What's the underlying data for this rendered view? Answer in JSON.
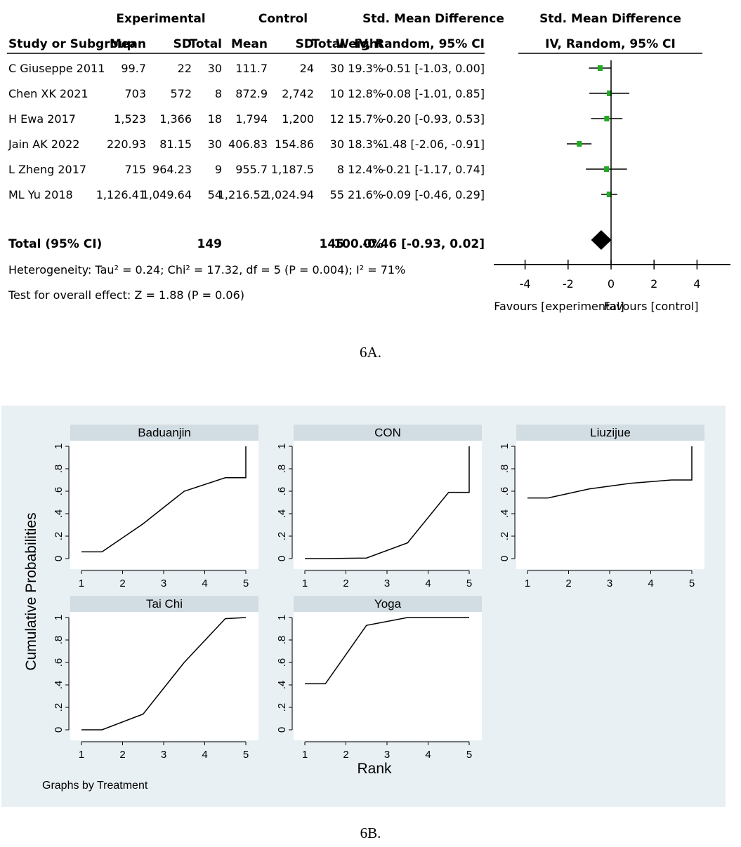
{
  "figure_a": {
    "caption": "6A.",
    "header": {
      "group_experimental": "Experimental",
      "group_control": "Control",
      "smd_col": "Std. Mean Difference",
      "smd_col_sub": "IV, Random, 95% CI",
      "plot_title": "Std. Mean Difference",
      "plot_title_sub": "IV, Random, 95% CI",
      "study": "Study or Subgroup",
      "mean": "Mean",
      "sd": "SD",
      "total": "Total",
      "weight": "Weight"
    },
    "total_row": {
      "label": "Total (95% CI)",
      "exp_total": "149",
      "ctrl_total": "145",
      "weight": "100.0%",
      "ci": "-0.46 [-0.93, 0.02]",
      "est": -0.46,
      "lo": -0.93,
      "hi": 0.02
    },
    "heterogeneity": "Heterogeneity: Tau² = 0.24; Chi² = 17.32, df = 5 (P = 0.004); I² = 71%",
    "overall_effect": "Test for overall effect: Z = 1.88 (P = 0.06)",
    "favours_left": "Favours [experimental]",
    "favours_right": "Favours [control]",
    "marker_color": "#22aa22"
  },
  "figure_b": {
    "caption": "6B.",
    "ylabel": "Cumulative Probabilities",
    "xlabel": "Rank",
    "note": "Graphs by Treatment",
    "background": "#e9f0f3",
    "strip_color": "#d2dde3"
  },
  "chart_data": [
    {
      "type": "forest",
      "title": "Std. Mean Difference IV, Random, 95% CI",
      "xlim": [
        -6,
        6
      ],
      "xticks": [
        -4,
        -2,
        0,
        2,
        4
      ],
      "studies": [
        {
          "name": "C Giuseppe 2011",
          "exp_mean": "99.7",
          "exp_sd": "22",
          "exp_total": "30",
          "ctrl_mean": "111.7",
          "ctrl_sd": "24",
          "ctrl_total": "30",
          "weight": "19.3%",
          "ci_text": "-0.51 [-1.03, 0.00]",
          "est": -0.51,
          "lo": -1.03,
          "hi": 0.0
        },
        {
          "name": "Chen XK 2021",
          "exp_mean": "703",
          "exp_sd": "572",
          "exp_total": "8",
          "ctrl_mean": "872.9",
          "ctrl_sd": "2,742",
          "ctrl_total": "10",
          "weight": "12.8%",
          "ci_text": "-0.08 [-1.01, 0.85]",
          "est": -0.08,
          "lo": -1.01,
          "hi": 0.85
        },
        {
          "name": "H Ewa 2017",
          "exp_mean": "1,523",
          "exp_sd": "1,366",
          "exp_total": "18",
          "ctrl_mean": "1,794",
          "ctrl_sd": "1,200",
          "ctrl_total": "12",
          "weight": "15.7%",
          "ci_text": "-0.20 [-0.93, 0.53]",
          "est": -0.2,
          "lo": -0.93,
          "hi": 0.53
        },
        {
          "name": "Jain AK 2022",
          "exp_mean": "220.93",
          "exp_sd": "81.15",
          "exp_total": "30",
          "ctrl_mean": "406.83",
          "ctrl_sd": "154.86",
          "ctrl_total": "30",
          "weight": "18.3%",
          "ci_text": "-1.48 [-2.06, -0.91]",
          "est": -1.48,
          "lo": -2.06,
          "hi": -0.91
        },
        {
          "name": "L Zheng 2017",
          "exp_mean": "715",
          "exp_sd": "964.23",
          "exp_total": "9",
          "ctrl_mean": "955.7",
          "ctrl_sd": "1,187.5",
          "ctrl_total": "8",
          "weight": "12.4%",
          "ci_text": "-0.21 [-1.17, 0.74]",
          "est": -0.21,
          "lo": -1.17,
          "hi": 0.74
        },
        {
          "name": "ML Yu 2018",
          "exp_mean": "1,126.41",
          "exp_sd": "1,049.64",
          "exp_total": "54",
          "ctrl_mean": "1,216.52",
          "ctrl_sd": "1,024.94",
          "ctrl_total": "55",
          "weight": "21.6%",
          "ci_text": "-0.09 [-0.46, 0.29]",
          "est": -0.09,
          "lo": -0.46,
          "hi": 0.29
        }
      ]
    },
    {
      "type": "line",
      "title": "Graphs by Treatment",
      "xlabel": "Rank",
      "ylabel": "Cumulative Probabilities",
      "xlim": [
        1,
        5
      ],
      "ylim": [
        0,
        1
      ],
      "xticks": [
        1,
        2,
        3,
        4,
        5
      ],
      "yticks": [
        0,
        0.2,
        0.4,
        0.6,
        0.8,
        1
      ],
      "ytick_labels": [
        "0",
        ".2",
        ".4",
        ".6",
        ".8",
        "1"
      ],
      "xtick_labels": [
        "1",
        "2",
        "3",
        "4",
        "5"
      ],
      "panels": [
        {
          "name": "Baduanjin",
          "x": [
            1,
            1.5,
            2.5,
            3.5,
            4.5,
            5,
            5
          ],
          "y": [
            0.06,
            0.06,
            0.31,
            0.6,
            0.72,
            0.72,
            1.0
          ]
        },
        {
          "name": "CON",
          "x": [
            1,
            1.5,
            2.5,
            3.5,
            4.5,
            5,
            5
          ],
          "y": [
            0,
            0,
            0.005,
            0.14,
            0.59,
            0.59,
            1.0
          ]
        },
        {
          "name": "Liuzijue",
          "x": [
            1,
            1.5,
            2.5,
            3.5,
            4.5,
            5,
            5
          ],
          "y": [
            0.54,
            0.54,
            0.62,
            0.67,
            0.7,
            0.7,
            1.0
          ]
        },
        {
          "name": "Tai Chi",
          "x": [
            1,
            1.5,
            2.5,
            3.5,
            4.5,
            5
          ],
          "y": [
            0,
            0,
            0.14,
            0.6,
            0.99,
            1.0
          ]
        },
        {
          "name": "Yoga",
          "x": [
            1,
            1.5,
            2.5,
            3.5,
            4.5,
            5
          ],
          "y": [
            0.41,
            0.41,
            0.93,
            1.0,
            1.0,
            1.0
          ]
        }
      ]
    }
  ]
}
